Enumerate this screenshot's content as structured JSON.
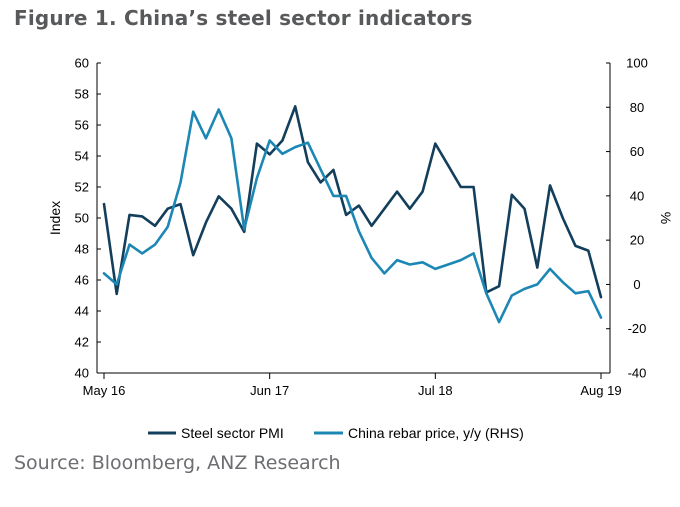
{
  "title": "Figure 1. China’s steel sector indicators",
  "source": "Source: Bloomberg, ANZ Research",
  "chart_data": {
    "type": "line",
    "title": "Figure 1. China’s steel sector indicators",
    "ylabel": "Index",
    "y2label": "%",
    "ylim": [
      40,
      60
    ],
    "y2lim": [
      -40,
      100
    ],
    "yticks": [
      40,
      42,
      44,
      46,
      48,
      50,
      52,
      54,
      56,
      58,
      60
    ],
    "y2ticks": [
      -40,
      -20,
      0,
      20,
      40,
      60,
      80,
      100
    ],
    "xticks": [
      {
        "label": "May 16",
        "index": 0
      },
      {
        "label": "Jun 17",
        "index": 13
      },
      {
        "label": "Jul 18",
        "index": 26
      },
      {
        "label": "Aug 19",
        "index": 39
      }
    ],
    "x": [
      "May 16",
      "Jun 16",
      "Jul 16",
      "Aug 16",
      "Sep 16",
      "Oct 16",
      "Nov 16",
      "Dec 16",
      "Jan 17",
      "Feb 17",
      "Mar 17",
      "Apr 17",
      "May 17",
      "Jun 17",
      "Jul 17",
      "Aug 17",
      "Sep 17",
      "Oct 17",
      "Nov 17",
      "Dec 17",
      "Jan 18",
      "Feb 18",
      "Mar 18",
      "Apr 18",
      "May 18",
      "Jun 18",
      "Jul 18",
      "Aug 18",
      "Sep 18",
      "Oct 18",
      "Nov 18",
      "Dec 18",
      "Jan 19",
      "Feb 19",
      "Mar 19",
      "Apr 19",
      "May 19",
      "Jun 19",
      "Jul 19",
      "Aug 19"
    ],
    "series": [
      {
        "name": "Steel sector PMI",
        "axis": "left",
        "color": "#133f5c",
        "values": [
          50.9,
          45.1,
          50.2,
          50.1,
          49.5,
          50.6,
          50.9,
          47.6,
          49.7,
          51.4,
          50.6,
          49.1,
          54.8,
          54.1,
          55.0,
          57.2,
          53.6,
          52.3,
          53.1,
          50.2,
          50.8,
          49.5,
          50.6,
          51.7,
          50.6,
          51.7,
          54.8,
          53.4,
          52.0,
          52.0,
          45.2,
          45.6,
          51.5,
          50.6,
          46.8,
          52.1,
          50.0,
          48.2,
          47.9,
          44.9
        ]
      },
      {
        "name": "China rebar price, y/y (RHS)",
        "axis": "right",
        "color": "#1c87b5",
        "values": [
          5,
          0,
          18,
          14,
          18,
          26,
          46,
          78,
          66,
          79,
          66,
          25,
          48,
          65,
          59,
          62,
          64,
          52,
          40,
          40,
          24,
          12,
          5,
          11,
          9,
          10,
          7,
          9,
          11,
          14,
          -4,
          -17,
          -5,
          -2,
          0,
          7,
          1,
          -4,
          -3,
          -15
        ]
      }
    ],
    "legend": "bottom",
    "grid": false
  }
}
